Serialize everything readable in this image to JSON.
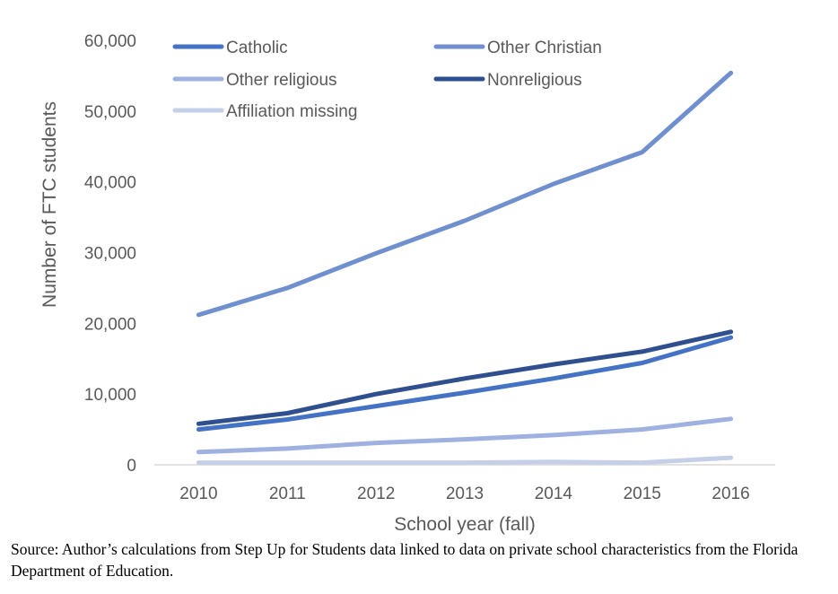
{
  "chart_data": {
    "type": "line",
    "xlabel": "School year (fall)",
    "ylabel": "Number of FTC students",
    "ylim": [
      0,
      60000
    ],
    "yticks": [
      "0",
      "10,000",
      "20,000",
      "30,000",
      "40,000",
      "50,000",
      "60,000"
    ],
    "categories": [
      "2010",
      "2011",
      "2012",
      "2013",
      "2014",
      "2015",
      "2016"
    ],
    "grid": false,
    "legend_position": "top-left",
    "series": [
      {
        "name": "Catholic",
        "color": "#4472c4",
        "values": [
          5000,
          6400,
          8300,
          10200,
          12200,
          14400,
          18000
        ]
      },
      {
        "name": "Other Christian",
        "color": "#6f8fcf",
        "values": [
          21200,
          25000,
          29900,
          34500,
          39700,
          44200,
          55400
        ]
      },
      {
        "name": "Other religious",
        "color": "#9fb1e0",
        "values": [
          1800,
          2300,
          3100,
          3600,
          4200,
          5000,
          6500
        ]
      },
      {
        "name": "Nonreligious",
        "color": "#2f4f8f",
        "values": [
          5800,
          7300,
          10000,
          12200,
          14200,
          16000,
          18800
        ]
      },
      {
        "name": "Affiliation missing",
        "color": "#c5cfe8",
        "values": [
          300,
          300,
          300,
          300,
          400,
          300,
          1000
        ]
      }
    ]
  },
  "source_note": "Source: Author’s calculations from Step Up for Students data linked to data on private school characteristics from the Florida Department of Education."
}
